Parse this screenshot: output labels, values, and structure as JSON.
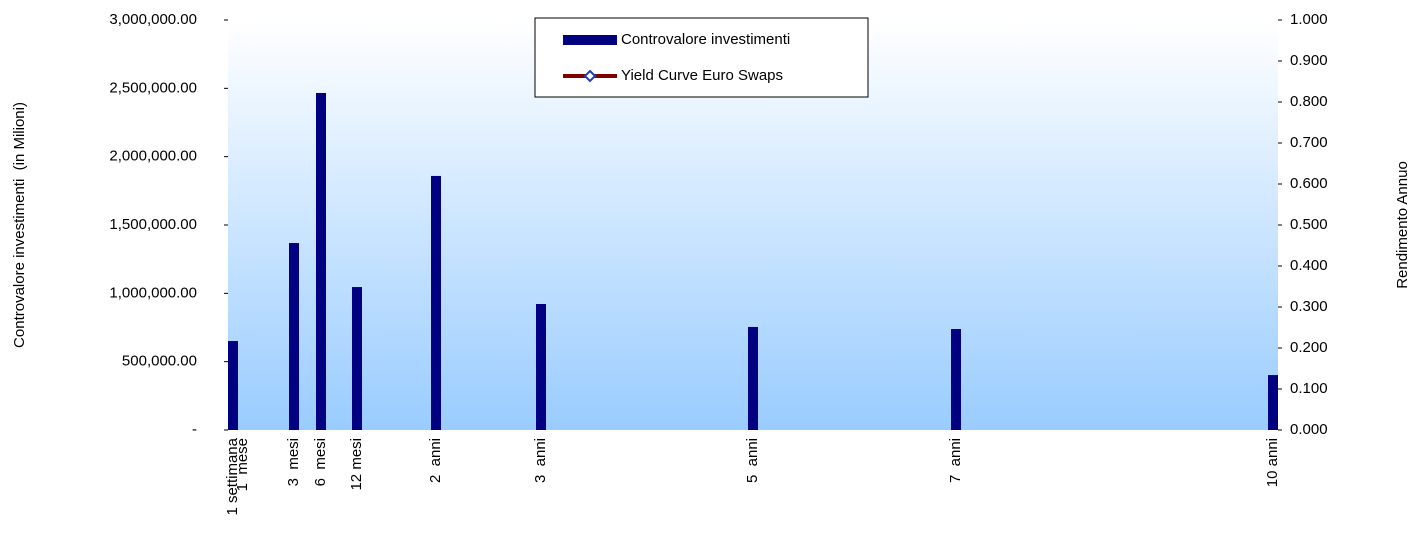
{
  "chart_data": {
    "type": "bar",
    "y_label": "Controvalore investimenti  (in Milioni)",
    "y2_label": "Rendimento Annuo",
    "categories": [
      "1 settimana",
      "1  mese",
      "3  mesi",
      "6  mesi",
      "12 mesi",
      "2  anni",
      "3  anni",
      "5  anni",
      "7  anni",
      "10 anni"
    ],
    "series": [
      {
        "name": "Controvalore investimenti",
        "color": "#000080",
        "values": [
          651000,
          null,
          1368000,
          2466000,
          1046000,
          1859000,
          922000,
          754000,
          739000,
          402000
        ]
      },
      {
        "name": "Yield Curve Euro Swaps",
        "color": "#800000",
        "axis": "y2",
        "values": [
          null,
          null,
          null,
          null,
          null,
          null,
          null,
          null,
          null,
          null
        ]
      }
    ],
    "ylim": [
      0,
      3000000
    ],
    "yticks": [
      {
        "value": 0,
        "label": "-"
      },
      {
        "value": 500000,
        "label": "500,000.00"
      },
      {
        "value": 1000000,
        "label": "1,000,000.00"
      },
      {
        "value": 1500000,
        "label": "1,500,000.00"
      },
      {
        "value": 2000000,
        "label": "2,000,000.00"
      },
      {
        "value": 2500000,
        "label": "2,500,000.00"
      },
      {
        "value": 3000000,
        "label": "3,000,000.00"
      }
    ],
    "y2lim": [
      0,
      1
    ],
    "y2ticks": [
      {
        "value": 0,
        "label": "0.000"
      },
      {
        "value": 0.1,
        "label": "0.100"
      },
      {
        "value": 0.2,
        "label": "0.200"
      },
      {
        "value": 0.3,
        "label": "0.300"
      },
      {
        "value": 0.4,
        "label": "0.400"
      },
      {
        "value": 0.5,
        "label": "0.500"
      },
      {
        "value": 0.6,
        "label": "0.600"
      },
      {
        "value": 0.7,
        "label": "0.700"
      },
      {
        "value": 0.8,
        "label": "0.800"
      },
      {
        "value": 0.9,
        "label": "0.900"
      },
      {
        "value": 1,
        "label": "1.000"
      }
    ],
    "legend": "top"
  }
}
